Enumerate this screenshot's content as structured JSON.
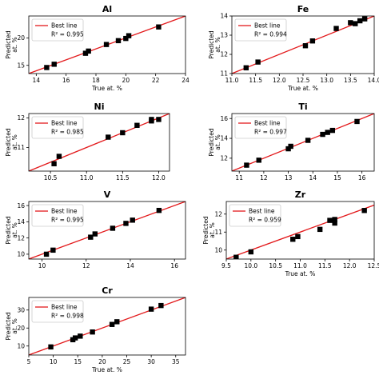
{
  "colors": {
    "line": "#e31a1c",
    "marker": "#000000",
    "frame": "#000000",
    "legend_border": "#cccccc"
  },
  "chart_data": [
    {
      "type": "scatter",
      "title": "Al",
      "xlabel": "True at. %",
      "ylabel": "Predicted at. %",
      "xlim": [
        13.5,
        24
      ],
      "ylim": [
        13.5,
        24
      ],
      "xticks": [
        14,
        16,
        18,
        20,
        22,
        24
      ],
      "yticks": [
        15,
        20
      ],
      "legend": {
        "entries": [
          "Best line",
          "R² = 0.995"
        ],
        "location": "upper-left"
      },
      "series": [
        {
          "name": "Best line",
          "kind": "line",
          "x": [
            13.5,
            24
          ],
          "y": [
            13.5,
            24
          ]
        },
        {
          "kind": "points",
          "x": [
            14.7,
            15.2,
            17.3,
            17.5,
            18.7,
            19.5,
            20.0,
            20.2,
            22.2
          ],
          "y": [
            14.6,
            15.2,
            17.2,
            17.6,
            18.8,
            19.5,
            19.9,
            20.4,
            22.0
          ]
        }
      ]
    },
    {
      "type": "scatter",
      "title": "Fe",
      "xlabel": "True at. %",
      "ylabel": "Predicted at. %",
      "xlim": [
        11.0,
        14.0
      ],
      "ylim": [
        11.0,
        14.0
      ],
      "xticks": [
        11.0,
        11.5,
        12.0,
        12.5,
        13.0,
        13.5,
        14.0
      ],
      "yticks": [
        11,
        12,
        13,
        14
      ],
      "legend": {
        "entries": [
          "Best line",
          "R² = 0.994"
        ],
        "location": "upper-left"
      },
      "series": [
        {
          "name": "Best line",
          "kind": "line",
          "x": [
            11.0,
            14.0
          ],
          "y": [
            11.0,
            14.0
          ]
        },
        {
          "kind": "points",
          "x": [
            11.3,
            11.55,
            12.55,
            12.7,
            13.2,
            13.5,
            13.6,
            13.7,
            13.8
          ],
          "y": [
            11.3,
            11.6,
            12.45,
            12.7,
            13.35,
            13.65,
            13.6,
            13.75,
            13.85
          ]
        }
      ]
    },
    {
      "type": "scatter",
      "title": "Ni",
      "xlabel": "",
      "ylabel": "Predicted at. %",
      "xlim": [
        10.2,
        12.15
      ],
      "ylim": [
        10.2,
        12.15
      ],
      "xticks": [
        10.5,
        11.0,
        11.5,
        12.0
      ],
      "yticks": [
        11,
        12
      ],
      "legend": {
        "entries": [
          "Best line",
          "R² = 0.985"
        ],
        "location": "upper-left"
      },
      "series": [
        {
          "name": "Best line",
          "kind": "line",
          "x": [
            10.2,
            12.15
          ],
          "y": [
            10.2,
            12.15
          ]
        },
        {
          "kind": "points",
          "x": [
            10.55,
            10.62,
            11.3,
            11.5,
            11.7,
            11.9,
            11.9,
            12.0
          ],
          "y": [
            10.45,
            10.7,
            11.35,
            11.5,
            11.75,
            11.95,
            11.9,
            11.95
          ]
        }
      ]
    },
    {
      "type": "scatter",
      "title": "Ti",
      "xlabel": "",
      "ylabel": "Predicted at. %",
      "xlim": [
        10.7,
        16.5
      ],
      "ylim": [
        10.7,
        16.5
      ],
      "xticks": [
        11,
        12,
        13,
        14,
        15,
        16
      ],
      "yticks": [
        12,
        14,
        16
      ],
      "legend": {
        "entries": [
          "Best line",
          "R² = 0.997"
        ],
        "location": "upper-left"
      },
      "series": [
        {
          "name": "Best line",
          "kind": "line",
          "x": [
            10.7,
            16.5
          ],
          "y": [
            10.7,
            16.5
          ]
        },
        {
          "kind": "points",
          "x": [
            11.3,
            11.8,
            13.0,
            13.1,
            13.8,
            14.4,
            14.6,
            14.8,
            15.8
          ],
          "y": [
            11.3,
            11.8,
            12.95,
            13.2,
            13.8,
            14.4,
            14.6,
            14.8,
            15.7
          ]
        }
      ]
    },
    {
      "type": "scatter",
      "title": "V",
      "xlabel": "",
      "ylabel": "Predicted at. %",
      "xlim": [
        9.4,
        16.5
      ],
      "ylim": [
        9.4,
        16.5
      ],
      "xticks": [
        10,
        12,
        14,
        16
      ],
      "yticks": [
        10,
        12,
        14,
        16
      ],
      "legend": {
        "entries": [
          "Best line",
          "R² = 0.995"
        ],
        "location": "upper-left"
      },
      "series": [
        {
          "name": "Best line",
          "kind": "line",
          "x": [
            9.4,
            16.5
          ],
          "y": [
            9.4,
            16.5
          ]
        },
        {
          "kind": "points",
          "x": [
            10.2,
            10.5,
            12.2,
            12.4,
            13.2,
            13.8,
            14.1,
            15.3
          ],
          "y": [
            10.0,
            10.5,
            12.1,
            12.5,
            13.2,
            13.8,
            14.2,
            15.4
          ]
        }
      ]
    },
    {
      "type": "scatter",
      "title": "Zr",
      "xlabel": "True at. %",
      "ylabel": "Predicted at. %",
      "xlim": [
        9.5,
        12.5
      ],
      "ylim": [
        9.5,
        12.7
      ],
      "xticks": [
        9.5,
        10.0,
        10.5,
        11.0,
        11.5,
        12.0,
        12.5
      ],
      "yticks": [
        10,
        11,
        12
      ],
      "legend": {
        "entries": [
          "Best line",
          "R² = 0.959"
        ],
        "location": "upper-left"
      },
      "series": [
        {
          "name": "Best line",
          "kind": "line",
          "x": [
            9.5,
            12.5
          ],
          "y": [
            9.5,
            12.5
          ]
        },
        {
          "kind": "points",
          "x": [
            9.7,
            10.0,
            10.85,
            10.95,
            11.4,
            11.6,
            11.7,
            11.7,
            12.3
          ],
          "y": [
            9.6,
            9.9,
            10.6,
            10.75,
            11.15,
            11.65,
            11.7,
            11.5,
            12.2
          ]
        }
      ]
    },
    {
      "type": "scatter",
      "title": "Cr",
      "xlabel": "True at. %",
      "ylabel": "Predicted at. %",
      "xlim": [
        5,
        37
      ],
      "ylim": [
        5,
        37
      ],
      "xticks": [
        5,
        10,
        15,
        20,
        25,
        30,
        35
      ],
      "yticks": [
        10,
        20,
        30
      ],
      "legend": {
        "entries": [
          "Best line",
          "R² = 0.998"
        ],
        "location": "upper-left"
      },
      "series": [
        {
          "name": "Best line",
          "kind": "line",
          "x": [
            5,
            37
          ],
          "y": [
            5,
            37
          ]
        },
        {
          "kind": "points",
          "x": [
            9.5,
            14.0,
            14.5,
            15.5,
            18.0,
            22.0,
            23.0,
            30.0,
            32.0
          ],
          "y": [
            9.5,
            13.5,
            14.5,
            15.5,
            17.8,
            22.0,
            23.5,
            30.5,
            32.5
          ]
        }
      ]
    }
  ]
}
